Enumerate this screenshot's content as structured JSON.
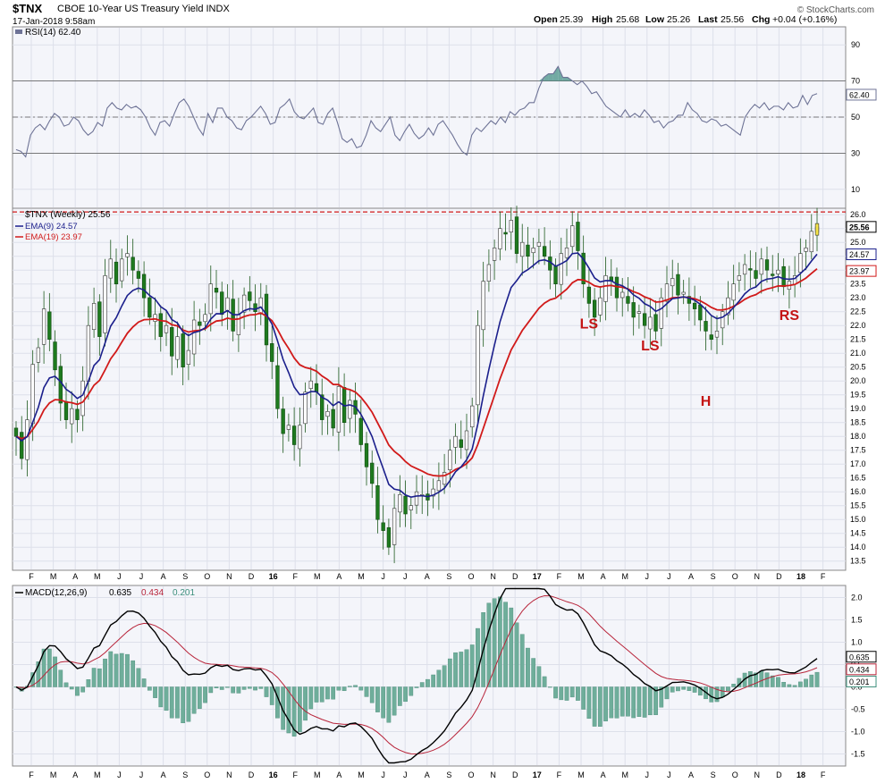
{
  "header": {
    "symbol": "$TNX",
    "name": "CBOE 10-Year US Treasury Yield  INDX",
    "date": "17-Jan-2018  9:58am",
    "open_label": "Open",
    "open": "25.39",
    "high_label": "High",
    "high": "25.68",
    "low_label": "Low",
    "low": "25.26",
    "last_label": "Last",
    "last": "25.56",
    "chg_label": "Chg",
    "chg": "+0.04 (+0.16%)",
    "credit": "© StockCharts.com"
  },
  "colors": {
    "panel_bg": "#f4f5fa",
    "up_candle": "#ffffff",
    "down_candle": "#1e7a1e",
    "ema9": "#1b1f8c",
    "ema19": "#d11a1a",
    "rsi_line": "#6e7396",
    "rsi_fill": "#5a9c93",
    "macd_line": "#000000",
    "signal_line": "#b8243a",
    "hist": "#6fae9b",
    "resistance": "#d11a1a",
    "annotation": "#c41414"
  },
  "x_axis_labels": [
    "F",
    "M",
    "A",
    "M",
    "J",
    "J",
    "A",
    "S",
    "O",
    "N",
    "D",
    "16",
    "F",
    "M",
    "A",
    "M",
    "J",
    "J",
    "A",
    "S",
    "O",
    "N",
    "D",
    "17",
    "F",
    "M",
    "A",
    "M",
    "J",
    "J",
    "A",
    "S",
    "O",
    "N",
    "D",
    "18",
    "F"
  ],
  "chart_data": [
    {
      "type": "line",
      "panel": "RSI",
      "legend": "RSI(14) 62.40",
      "ylim": [
        0,
        100
      ],
      "y_ticks": [
        10,
        30,
        50,
        70,
        90
      ],
      "reference_lines": [
        30,
        50,
        70
      ],
      "last_value_tag": "62.40",
      "series": [
        {
          "name": "RSI(14)",
          "values": [
            32,
            31,
            28,
            40,
            44,
            46,
            43,
            48,
            52,
            50,
            45,
            46,
            50,
            48,
            43,
            40,
            42,
            47,
            45,
            55,
            58,
            55,
            54,
            57,
            55,
            56,
            54,
            50,
            44,
            40,
            47,
            48,
            45,
            52,
            58,
            60,
            56,
            50,
            44,
            40,
            52,
            47,
            55,
            55,
            50,
            48,
            44,
            43,
            48,
            50,
            53,
            56,
            52,
            46,
            47,
            55,
            57,
            60,
            53,
            50,
            49,
            52,
            55,
            47,
            46,
            52,
            55,
            47,
            38,
            36,
            38,
            33,
            34,
            40,
            48,
            44,
            42,
            46,
            50,
            40,
            37,
            42,
            46,
            41,
            38,
            40,
            44,
            40,
            46,
            48,
            44,
            40,
            35,
            31,
            29,
            40,
            44,
            42,
            45,
            48,
            46,
            50,
            47,
            53,
            51,
            54,
            55,
            58,
            58,
            66,
            72,
            74,
            74,
            78,
            72,
            72,
            70,
            68,
            70,
            67,
            63,
            64,
            60,
            56,
            54,
            52,
            50,
            54,
            50,
            52,
            50,
            54,
            51,
            47,
            48,
            44,
            47,
            48,
            51,
            51,
            58,
            54,
            52,
            48,
            47,
            49,
            48,
            45,
            46,
            44,
            42,
            40,
            50,
            54,
            57,
            55,
            58,
            54,
            56,
            56,
            54,
            58,
            55,
            56,
            62,
            57,
            62,
            63
          ]
        }
      ]
    },
    {
      "type": "candlestick",
      "panel": "Price",
      "legend": "$TNX (Weekly) 25.56",
      "ema_labels": [
        "EMA(9) 24.57",
        "EMA(19) 23.97"
      ],
      "ylim": [
        13.2,
        26.2
      ],
      "y_ticks": [
        13.5,
        14.0,
        14.5,
        15.0,
        15.5,
        16.0,
        16.5,
        17.0,
        17.5,
        18.0,
        18.5,
        19.0,
        19.5,
        20.0,
        20.5,
        21.0,
        21.5,
        22.0,
        22.5,
        23.0,
        23.5,
        24.0,
        24.5,
        25.0,
        25.5,
        26.0
      ],
      "resistance_level": 26.1,
      "price_tags": [
        {
          "value": 25.56,
          "text": "25.56",
          "color": "#000000"
        },
        {
          "value": 24.57,
          "text": "24.57",
          "color": "#1b1f8c"
        },
        {
          "value": 23.97,
          "text": "23.97",
          "color": "#d11a1a"
        }
      ],
      "annotations": [
        {
          "text": "LS",
          "date_index": 103,
          "value": 21.9
        },
        {
          "text": "LS",
          "date_index": 114,
          "value": 21.1
        },
        {
          "text": "H",
          "date_index": 124,
          "value": 19.1
        },
        {
          "text": "RS",
          "date_index": 139,
          "value": 22.2
        }
      ],
      "closes": [
        18.0,
        17.2,
        18.6,
        20.6,
        21.2,
        22.6,
        21.5,
        20.4,
        19.2,
        18.6,
        19.0,
        18.6,
        20.0,
        22.0,
        22.8,
        21.6,
        23.8,
        24.4,
        23.5,
        24.4,
        24.6,
        24.0,
        23.7,
        23.0,
        22.3,
        22.4,
        21.6,
        22.0,
        20.9,
        21.6,
        20.5,
        21.1,
        22.2,
        22.0,
        22.4,
        23.5,
        23.2,
        22.4,
        23.0,
        21.8,
        22.4,
        23.1,
        22.9,
        22.5,
        23.0,
        21.3,
        20.7,
        19.0,
        18.1,
        18.4,
        17.7,
        18.4,
        19.6,
        20.0,
        19.6,
        18.6,
        18.9,
        18.3,
        19.8,
        18.5,
        19.3,
        18.8,
        17.7,
        16.9,
        16.3,
        15.0,
        14.6,
        14.0,
        15.4,
        15.9,
        15.2,
        15.5,
        16.0,
        15.9,
        15.7,
        16.1,
        16.4,
        16.7,
        17.5,
        18.0,
        17.6,
        18.2,
        19.1,
        22.0,
        23.6,
        24.2,
        24.8,
        25.5,
        25.3,
        25.8,
        24.6,
        25.0,
        24.5,
        24.8,
        25.0,
        24.5,
        24.0,
        23.5,
        24.6,
        24.8,
        25.6,
        24.7,
        23.5,
        22.8,
        22.3,
        23.0,
        23.8,
        23.6,
        23.0,
        23.2,
        22.8,
        22.3,
        22.5,
        22.0,
        22.3,
        21.8,
        23.0,
        23.5,
        23.7,
        23.1,
        23.2,
        22.8,
        22.6,
        22.2,
        21.8,
        21.5,
        21.8,
        22.5,
        23.0,
        23.5,
        23.8,
        24.2,
        24.0,
        23.7,
        24.4,
        24.0,
        23.8,
        24.0,
        23.4,
        23.6,
        23.8,
        24.6,
        24.8,
        25.4,
        25.56
      ],
      "series": [
        {
          "name": "EMA(9)",
          "last": 24.57
        },
        {
          "name": "EMA(19)",
          "last": 23.97
        }
      ]
    },
    {
      "type": "line",
      "panel": "MACD",
      "legend": "MACD(12,26,9)",
      "legend_values": [
        "0.635",
        "0.434",
        "0.201"
      ],
      "ylim": [
        -1.75,
        2.25
      ],
      "y_ticks": [
        -1.5,
        -1.0,
        -0.5,
        0.0,
        0.5,
        1.0,
        1.5,
        2.0
      ],
      "tick_labels": [
        "-1.5",
        "-1.0",
        "-0.5",
        "0.0",
        "0.5",
        "1.0",
        "1.5",
        "2.0"
      ],
      "tag_values": [
        {
          "value": 0.635,
          "text": "0.635"
        },
        {
          "value": 0.434,
          "text": "0.434"
        },
        {
          "value": 0.201,
          "text": "0.201"
        }
      ],
      "series": [
        {
          "name": "MACD",
          "last": 0.635
        },
        {
          "name": "Signal",
          "last": 0.434
        },
        {
          "name": "Histogram",
          "last": 0.201
        }
      ]
    }
  ]
}
